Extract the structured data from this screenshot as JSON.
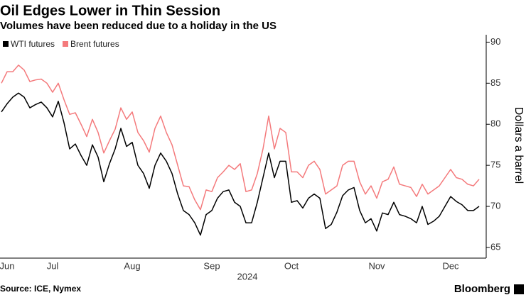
{
  "chart_data": {
    "type": "line",
    "title": "Oil Edges Lower in Thin Session",
    "subtitle": "Volumes have been reduced due to a holiday in the US",
    "ylabel": "Dollars a barrel",
    "xlabel": "2024",
    "source": "Source: ICE, Nymex",
    "brand": "Bloomberg",
    "categories": [
      null,
      "Jun",
      null,
      null,
      null,
      null,
      null,
      null,
      null,
      "Jul",
      null,
      null,
      null,
      null,
      null,
      null,
      null,
      null,
      null,
      null,
      null,
      null,
      null,
      "Aug",
      null,
      null,
      null,
      null,
      null,
      null,
      null,
      null,
      null,
      null,
      null,
      null,
      null,
      "Sep",
      null,
      null,
      null,
      null,
      null,
      null,
      null,
      null,
      null,
      null,
      null,
      null,
      null,
      "Oct",
      null,
      null,
      null,
      null,
      null,
      null,
      null,
      null,
      null,
      null,
      null,
      null,
      null,
      null,
      "Nov",
      null,
      null,
      null,
      null,
      null,
      null,
      null,
      null,
      null,
      null,
      null,
      null,
      "Dec",
      null,
      null,
      null,
      null,
      null
    ],
    "series": [
      {
        "name": "WTI futures",
        "color": "#000000",
        "values": [
          81.5,
          82.5,
          83.3,
          83.8,
          83.3,
          82,
          82.4,
          82.7,
          82,
          80.9,
          82.8,
          80.2,
          77,
          77.6,
          76.2,
          75,
          77.5,
          76,
          73,
          75.2,
          77,
          79.5,
          77.3,
          77.8,
          75,
          74,
          72.2,
          75,
          76.5,
          75.5,
          74,
          71.5,
          69.5,
          69,
          68,
          66.5,
          69,
          69.5,
          71,
          71.8,
          72,
          70.5,
          70,
          68,
          68,
          70.5,
          73.5,
          76.5,
          73.5,
          75.5,
          75.5,
          70.5,
          70.7,
          69.8,
          71,
          71.5,
          71,
          67.3,
          67.8,
          69.3,
          71.3,
          72,
          72.3,
          69.5,
          68,
          68.5,
          67,
          69.2,
          69,
          70.5,
          69,
          68.8,
          68.5,
          68,
          70,
          67.8,
          68.2,
          68.8,
          70,
          71.2,
          70.6,
          70.2,
          69.5,
          69.5,
          70
        ]
      },
      {
        "name": "Brent futures",
        "color": "#f47a7c",
        "values": [
          85,
          86.4,
          86.4,
          87.2,
          86.6,
          85.2,
          85.4,
          85.5,
          85,
          83.9,
          85,
          83,
          81.2,
          81.4,
          80,
          78.5,
          80.6,
          79,
          76.5,
          78,
          79.4,
          82,
          80.6,
          81.5,
          79,
          78,
          76.6,
          79.5,
          81,
          79,
          77.5,
          75,
          72.5,
          72.4,
          70.8,
          69.6,
          72,
          71.8,
          73.5,
          74.2,
          75,
          74.5,
          75.2,
          71.8,
          72,
          74,
          77,
          81,
          77,
          79.5,
          79,
          74.2,
          74.2,
          73.5,
          75,
          75.5,
          74.5,
          71.5,
          72,
          72.5,
          75,
          75.5,
          75.5,
          73,
          71.5,
          72.5,
          71,
          73,
          73.3,
          74.8,
          72.7,
          72.5,
          72.3,
          71.2,
          72.7,
          71.5,
          72,
          72.5,
          73.5,
          74.5,
          73.5,
          73.3,
          72.7,
          72.5,
          73.3
        ]
      }
    ],
    "ylim": [
      63.7,
      90.9
    ],
    "yticks": [
      65,
      70,
      75,
      80,
      85,
      90
    ],
    "grid": false,
    "legend": "top-left"
  }
}
